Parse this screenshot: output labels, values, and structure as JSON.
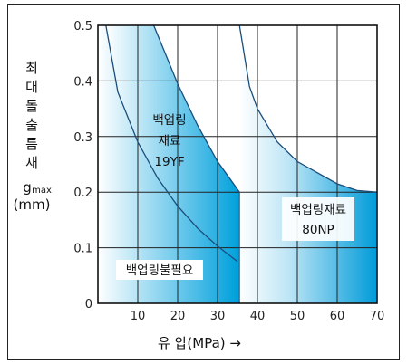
{
  "chart_data": {
    "type": "area",
    "xlabel": "유 압(MPa) →",
    "ylabel": {
      "lines": [
        "최",
        "대",
        "돌",
        "출",
        "틈",
        "새"
      ],
      "symbol": "g",
      "symbol_sub": "max",
      "unit": "(mm)"
    },
    "xlim": [
      0,
      70
    ],
    "ylim": [
      0,
      0.5
    ],
    "x_ticks": [
      10,
      20,
      30,
      40,
      50,
      60,
      70
    ],
    "x_tick_labels": [
      "10",
      "20",
      "30",
      "40",
      "50",
      "60",
      "70"
    ],
    "y_ticks": [
      0,
      0.1,
      0.2,
      0.3,
      0.4,
      0.5
    ],
    "y_tick_labels": [
      "0",
      "0.1",
      "0.2",
      "0.3",
      "0.4",
      "0.5"
    ],
    "grid": true,
    "colors": {
      "fill": "#009bd9",
      "light": "#ffffff",
      "line": "#1b4d7a",
      "grid": "#222222"
    },
    "regions": [
      {
        "label": "백업링불필요",
        "boundary": [
          [
            2,
            0.5
          ],
          [
            5,
            0.38
          ],
          [
            10,
            0.29
          ],
          [
            15,
            0.225
          ],
          [
            20,
            0.175
          ],
          [
            25,
            0.135
          ],
          [
            30,
            0.103
          ],
          [
            35,
            0.075
          ]
        ]
      },
      {
        "label": "백업링재료19YF",
        "label_lines": [
          "백업링",
          "재료",
          "19YF"
        ],
        "boundary": [
          [
            14,
            0.5
          ],
          [
            20,
            0.395
          ],
          [
            25,
            0.32
          ],
          [
            30,
            0.255
          ],
          [
            33,
            0.225
          ],
          [
            35.5,
            0.2
          ]
        ]
      },
      {
        "label": "백업링재료80NP",
        "label_lines": [
          "백업링재료",
          "80NP"
        ],
        "boundary": [
          [
            35.5,
            0.5
          ],
          [
            38,
            0.39
          ],
          [
            40,
            0.35
          ],
          [
            45,
            0.29
          ],
          [
            50,
            0.255
          ],
          [
            55,
            0.235
          ],
          [
            60,
            0.215
          ],
          [
            65,
            0.203
          ],
          [
            70,
            0.2
          ]
        ]
      }
    ]
  }
}
